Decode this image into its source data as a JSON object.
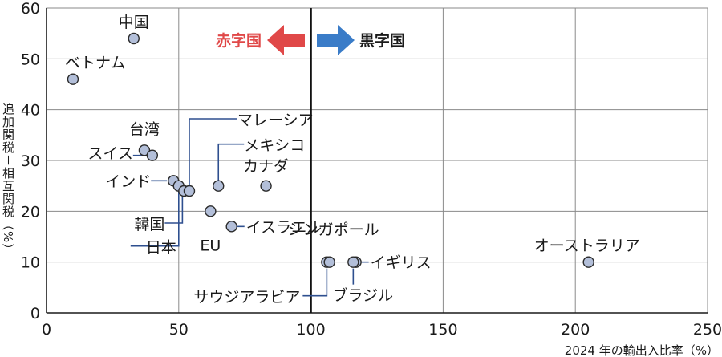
{
  "chart_data": {
    "type": "scatter",
    "xlabel": "2024 年の輸出入比率（%）",
    "ylabel": "追加関税＋相互関税（%）",
    "xlim": [
      0,
      250
    ],
    "ylim": [
      0,
      60
    ],
    "x_ticks": [
      0,
      50,
      100,
      150,
      200,
      250
    ],
    "y_ticks": [
      0,
      10,
      20,
      30,
      40,
      50,
      60
    ],
    "grid": true,
    "reference_line": {
      "x": 100
    },
    "annotations": {
      "left": {
        "text": "赤字国",
        "color": "#e04848"
      },
      "right": {
        "text": "黒字国",
        "color": "#3a7cc8"
      }
    },
    "points": [
      {
        "label": "中国",
        "x": 33,
        "y": 54
      },
      {
        "label": "ベトナム",
        "x": 10,
        "y": 46
      },
      {
        "label": "台湾",
        "x": 37,
        "y": 32
      },
      {
        "label": "スイス",
        "x": 40,
        "y": 31
      },
      {
        "label": "インド",
        "x": 48,
        "y": 26
      },
      {
        "label": "日本",
        "x": 50,
        "y": 25
      },
      {
        "label": "韓国",
        "x": 52,
        "y": 24
      },
      {
        "label": "マレーシア",
        "x": 54,
        "y": 24
      },
      {
        "label": "メキシコ",
        "x": 65,
        "y": 25
      },
      {
        "label": "カナダ",
        "x": 83,
        "y": 25
      },
      {
        "label": "EU",
        "x": 62,
        "y": 20
      },
      {
        "label": "イスラエル",
        "x": 70,
        "y": 17
      },
      {
        "label": "サウジアラビア",
        "x": 106,
        "y": 10
      },
      {
        "label": "シンガポール",
        "x": 107,
        "y": 10
      },
      {
        "label": "イギリス",
        "x": 117,
        "y": 10
      },
      {
        "label": "ブラジル",
        "x": 116,
        "y": 10
      },
      {
        "label": "オーストラリア",
        "x": 205,
        "y": 10
      }
    ]
  }
}
